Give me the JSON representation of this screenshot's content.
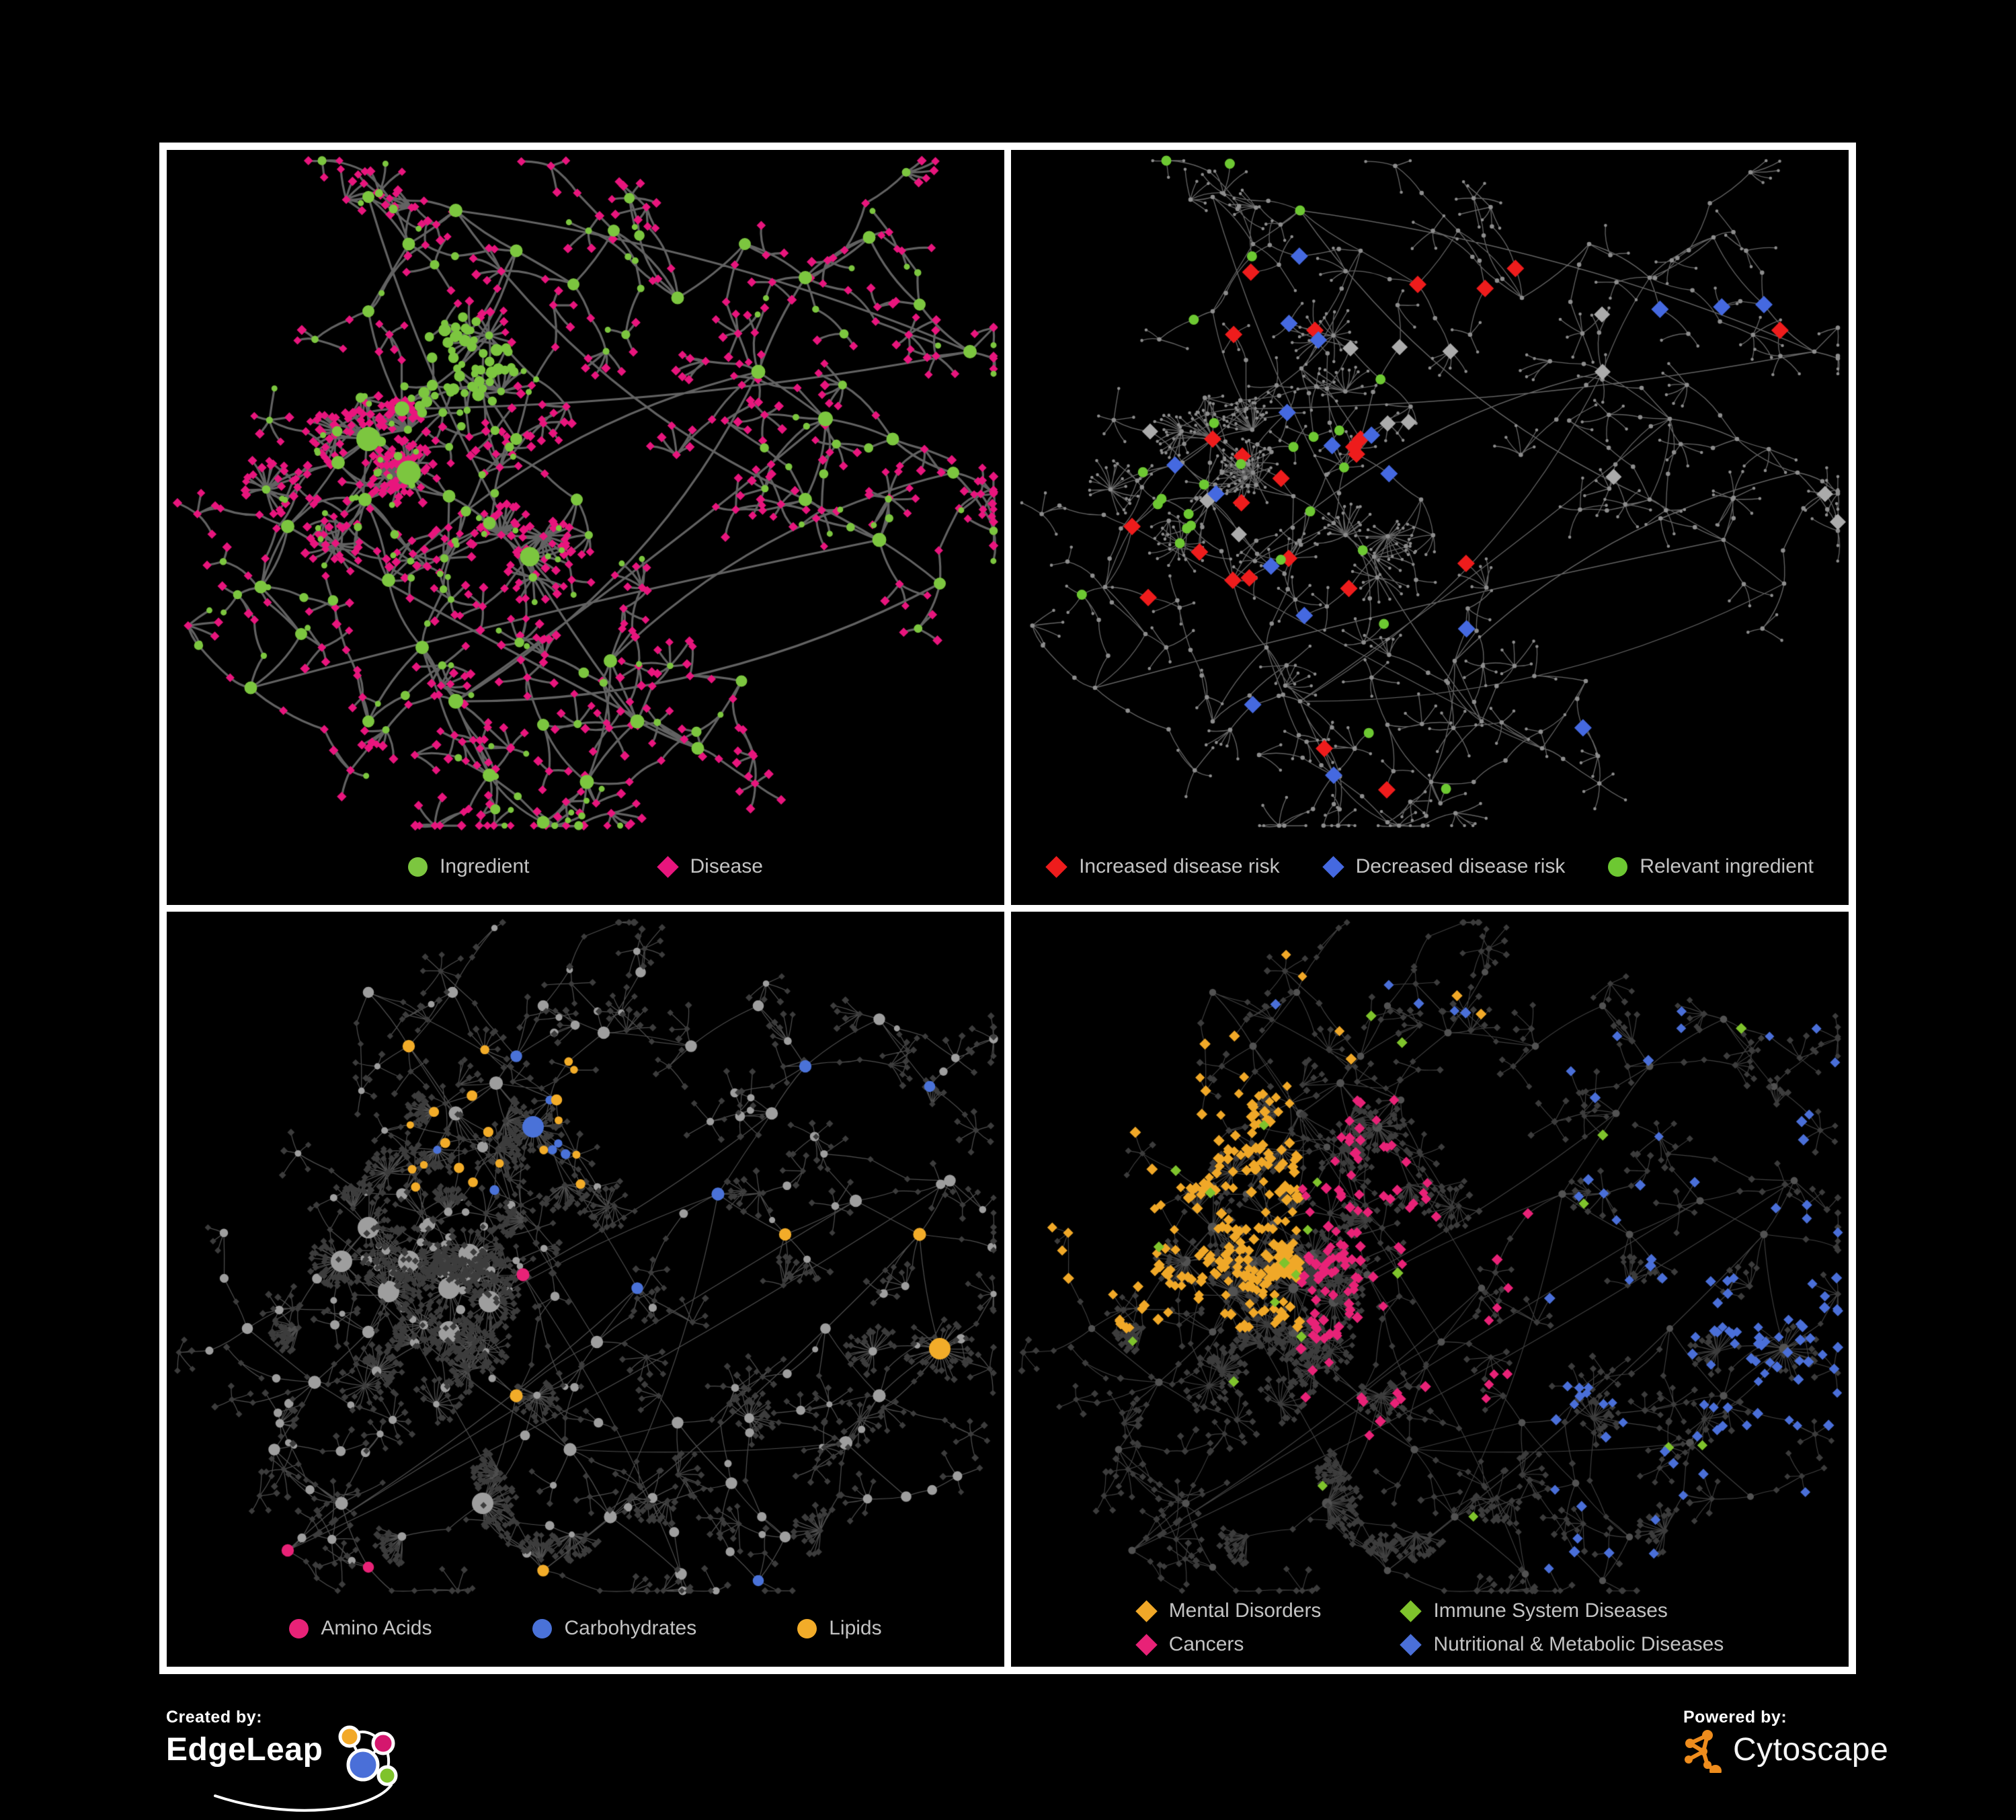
{
  "panels": [
    {
      "id": "ingredient-disease",
      "legend": [
        {
          "label": "Ingredient",
          "shape": "circle",
          "color": "#7cc63f"
        },
        {
          "label": "Disease",
          "shape": "diamond",
          "color": "#e8157d"
        }
      ],
      "palette": {
        "ingredient": "#7cc63f",
        "disease": "#e8157d"
      },
      "edge": {
        "color": "#676767",
        "width": 3.2,
        "opacity": 0.95
      }
    },
    {
      "id": "disease-risk",
      "legend": [
        {
          "label": "Increased disease risk",
          "shape": "diamond",
          "color": "#ee1c1c"
        },
        {
          "label": "Decreased disease risk",
          "shape": "diamond",
          "color": "#4569e0"
        },
        {
          "label": "Relevant ingredient",
          "shape": "circle",
          "color": "#6dc832"
        }
      ],
      "palette": {
        "increased": "#ee1c1c",
        "decreased": "#4569e0",
        "neutral": "#ababab",
        "relevant": "#6dc832",
        "base": "#8d8d8d"
      },
      "edge": {
        "color": "#848484",
        "width": 1.35,
        "opacity": 0.75
      }
    },
    {
      "id": "nutrient-classes",
      "legend": [
        {
          "label": "Amino Acids",
          "shape": "circle",
          "color": "#e82277"
        },
        {
          "label": "Carbohydrates",
          "shape": "circle",
          "color": "#4a72d8"
        },
        {
          "label": "Lipids",
          "shape": "circle",
          "color": "#f2ac29"
        }
      ],
      "palette": {
        "amino": "#e82277",
        "carbs": "#4a72d8",
        "lipids": "#f2ac29",
        "neutral": "#9e9e9e",
        "dim": "#3c3c3c"
      },
      "edge": {
        "color": "#9c9c9c",
        "width": 1.25,
        "opacity": 0.5
      }
    },
    {
      "id": "disease-classes",
      "legend": [
        {
          "label": "Mental Disorders",
          "shape": "diamond",
          "color": "#f0a828"
        },
        {
          "label": "Immune System Diseases",
          "shape": "diamond",
          "color": "#7fc32c"
        },
        {
          "label": "Cancers",
          "shape": "diamond",
          "color": "#e82277"
        },
        {
          "label": "Nutritional & Metabolic Diseases",
          "shape": "diamond",
          "color": "#4a6fd8"
        }
      ],
      "palette": {
        "mental": "#f0a828",
        "immune": "#7fc32c",
        "cancers": "#e82277",
        "nutritional": "#4a6fd8",
        "dim": "#3c3c3c",
        "hub": "#525252"
      },
      "edge": {
        "color": "#8f8f8f",
        "width": 1.15,
        "opacity": 0.45
      }
    }
  ],
  "footer": {
    "created_by": "Created by:",
    "creator": "EdgeLeap",
    "powered_by": "Powered by:",
    "engine": "Cytoscape"
  }
}
